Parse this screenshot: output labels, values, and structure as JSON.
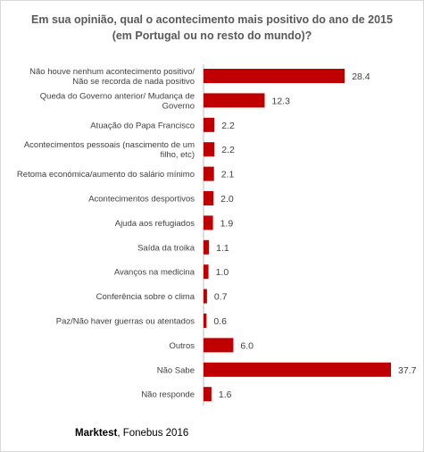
{
  "title_line1": "Em sua opinião, qual o acontecimento mais positivo do ano de 2015",
  "title_line2": "(em Portugal ou no resto do mundo)?",
  "source": {
    "brand": "Marktest",
    "rest": ", Fonebus 2016"
  },
  "colors": {
    "bar": "#c00000",
    "axis": "#bfbfbf",
    "label": "#404040",
    "value": "#404040"
  },
  "chart_data": {
    "type": "bar",
    "orientation": "horizontal",
    "title": "Em sua opinião, qual o acontecimento mais positivo do ano de 2015 (em Portugal ou no resto do mundo)?",
    "categories": [
      [
        "Não houve nenhum acontecimento positivo/",
        "Não se recorda de nada positivo"
      ],
      [
        "Queda do Governo anterior/ Mudança de",
        "Governo"
      ],
      [
        "Atuação do Papa Francisco"
      ],
      [
        "Acontecimentos pessoais (nascimento de um",
        "filho, etc)"
      ],
      [
        "Retoma económica/aumento do salário mínimo"
      ],
      [
        "Acontecimentos desportivos"
      ],
      [
        "Ajuda aos refugiados"
      ],
      [
        "Saída da troika"
      ],
      [
        "Avanços na medicina"
      ],
      [
        "Conferência sobre o clima"
      ],
      [
        "Paz/Não haver guerras ou atentados"
      ],
      [
        "Outros"
      ],
      [
        "Não Sabe"
      ],
      [
        "Não responde"
      ]
    ],
    "values": [
      28.4,
      12.3,
      2.2,
      2.2,
      2.1,
      2.0,
      1.9,
      1.1,
      1.0,
      0.7,
      0.6,
      6.0,
      37.7,
      1.6
    ],
    "value_labels": [
      "28.4",
      "12.3",
      "2.2",
      "2.2",
      "2.1",
      "2.0",
      "1.9",
      "1.1",
      "1.0",
      "0.7",
      "0.6",
      "6.0",
      "37.7",
      "1.6"
    ],
    "xlim": [
      0,
      37.7
    ],
    "grid": false,
    "legend": "none"
  }
}
